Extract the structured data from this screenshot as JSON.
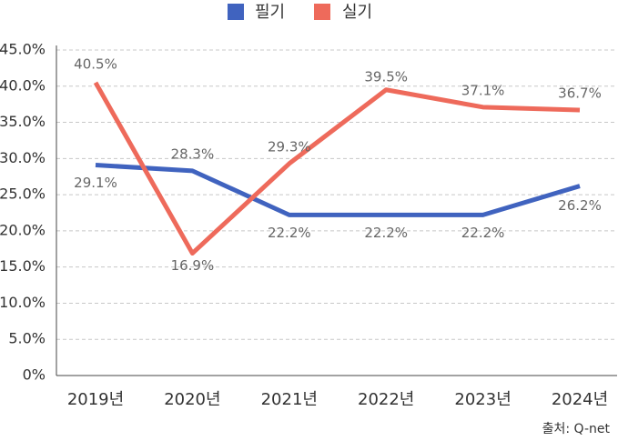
{
  "chart_data": {
    "type": "line",
    "categories": [
      "2019년",
      "2020년",
      "2021년",
      "2022년",
      "2023년",
      "2024년"
    ],
    "series": [
      {
        "name": "필기",
        "color": "#4063bf",
        "values": [
          29.1,
          28.3,
          22.2,
          22.2,
          22.2,
          26.2
        ],
        "value_labels": [
          "29.1%",
          "28.3%",
          "22.2%",
          "22.2%",
          "22.2%",
          "26.2%"
        ]
      },
      {
        "name": "실기",
        "color": "#ee6a5b",
        "values": [
          40.5,
          16.9,
          29.3,
          39.5,
          37.1,
          36.7
        ],
        "value_labels": [
          "40.5%",
          "16.9%",
          "29.3%",
          "39.5%",
          "37.1%",
          "36.7%"
        ]
      }
    ],
    "ylim": [
      0,
      45
    ],
    "yticks": [
      {
        "value": 0,
        "label": "0%"
      },
      {
        "value": 5,
        "label": "5.0%"
      },
      {
        "value": 10,
        "label": "10.0%"
      },
      {
        "value": 15,
        "label": "15.0%"
      },
      {
        "value": 20,
        "label": "20.0%"
      },
      {
        "value": 25,
        "label": "25.0%"
      },
      {
        "value": 30,
        "label": "30.0%"
      },
      {
        "value": 35,
        "label": "35.0%"
      },
      {
        "value": 40,
        "label": "40.0%"
      },
      {
        "value": 45,
        "label": "45.0%"
      }
    ],
    "grid": true,
    "legend": "top",
    "source": "출처: Q-net"
  }
}
